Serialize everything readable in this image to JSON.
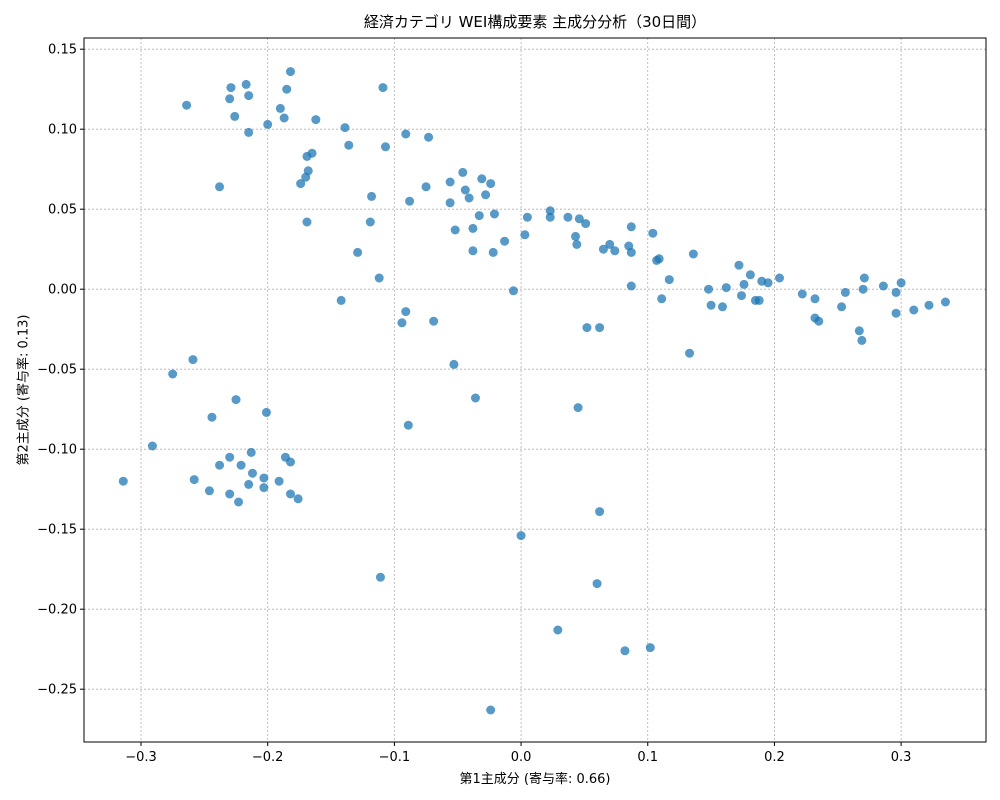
{
  "chart_data": {
    "type": "scatter",
    "title": "経済カテゴリ WEI構成要素 主成分分析（30日間）",
    "xlabel": "第1主成分 (寄与率: 0.66)",
    "ylabel": "第2主成分 (寄与率: 0.13)",
    "xlim": [
      -0.345,
      0.367
    ],
    "ylim": [
      -0.283,
      0.157
    ],
    "xticks": [
      -0.3,
      -0.2,
      -0.1,
      0.0,
      0.1,
      0.2,
      0.3
    ],
    "xtick_labels": [
      "−0.3",
      "−0.2",
      "−0.1",
      "0.0",
      "0.1",
      "0.2",
      "0.3"
    ],
    "yticks": [
      0.15,
      0.1,
      0.05,
      0.0,
      -0.05,
      -0.1,
      -0.15,
      -0.2,
      -0.25
    ],
    "ytick_labels": [
      "0.15",
      "0.10",
      "0.05",
      "0.00",
      "−0.05",
      "−0.10",
      "−0.15",
      "−0.20",
      "−0.25"
    ],
    "grid": true,
    "marker_color": "#1f77b4",
    "points": [
      [
        -0.182,
        0.136
      ],
      [
        -0.217,
        0.128
      ],
      [
        -0.229,
        0.126
      ],
      [
        -0.185,
        0.125
      ],
      [
        -0.109,
        0.126
      ],
      [
        -0.215,
        0.121
      ],
      [
        -0.23,
        0.119
      ],
      [
        -0.264,
        0.115
      ],
      [
        -0.19,
        0.113
      ],
      [
        -0.226,
        0.108
      ],
      [
        -0.187,
        0.107
      ],
      [
        -0.162,
        0.106
      ],
      [
        -0.2,
        0.103
      ],
      [
        -0.139,
        0.101
      ],
      [
        -0.215,
        0.098
      ],
      [
        -0.091,
        0.097
      ],
      [
        -0.073,
        0.095
      ],
      [
        -0.136,
        0.09
      ],
      [
        -0.107,
        0.089
      ],
      [
        -0.165,
        0.085
      ],
      [
        -0.169,
        0.083
      ],
      [
        -0.168,
        0.074
      ],
      [
        -0.046,
        0.073
      ],
      [
        -0.17,
        0.07
      ],
      [
        -0.031,
        0.069
      ],
      [
        -0.174,
        0.066
      ],
      [
        -0.056,
        0.067
      ],
      [
        -0.024,
        0.066
      ],
      [
        -0.075,
        0.064
      ],
      [
        -0.238,
        0.064
      ],
      [
        -0.044,
        0.062
      ],
      [
        -0.028,
        0.059
      ],
      [
        -0.041,
        0.057
      ],
      [
        -0.118,
        0.058
      ],
      [
        -0.088,
        0.055
      ],
      [
        -0.056,
        0.054
      ],
      [
        -0.021,
        0.047
      ],
      [
        -0.033,
        0.046
      ],
      [
        0.023,
        0.049
      ],
      [
        0.005,
        0.045
      ],
      [
        0.023,
        0.045
      ],
      [
        0.037,
        0.045
      ],
      [
        0.046,
        0.044
      ],
      [
        -0.169,
        0.042
      ],
      [
        -0.119,
        0.042
      ],
      [
        0.051,
        0.041
      ],
      [
        -0.052,
        0.037
      ],
      [
        -0.038,
        0.038
      ],
      [
        0.087,
        0.039
      ],
      [
        0.104,
        0.035
      ],
      [
        0.003,
        0.034
      ],
      [
        0.043,
        0.033
      ],
      [
        -0.013,
        0.03
      ],
      [
        0.044,
        0.028
      ],
      [
        0.07,
        0.028
      ],
      [
        0.085,
        0.027
      ],
      [
        0.065,
        0.025
      ],
      [
        0.074,
        0.024
      ],
      [
        -0.129,
        0.023
      ],
      [
        -0.038,
        0.024
      ],
      [
        -0.022,
        0.023
      ],
      [
        0.087,
        0.023
      ],
      [
        0.136,
        0.022
      ],
      [
        0.107,
        0.018
      ],
      [
        0.109,
        0.019
      ],
      [
        0.172,
        0.015
      ],
      [
        0.181,
        0.009
      ],
      [
        0.204,
        0.007
      ],
      [
        0.271,
        0.007
      ],
      [
        0.117,
        0.006
      ],
      [
        -0.112,
        0.007
      ],
      [
        0.19,
        0.005
      ],
      [
        0.195,
        0.004
      ],
      [
        0.3,
        0.004
      ],
      [
        0.176,
        0.003
      ],
      [
        0.286,
        0.002
      ],
      [
        0.087,
        0.002
      ],
      [
        0.162,
        0.001
      ],
      [
        0.148,
        0.0
      ],
      [
        0.27,
        0.0
      ],
      [
        -0.006,
        -0.001
      ],
      [
        0.256,
        -0.002
      ],
      [
        0.296,
        -0.002
      ],
      [
        0.222,
        -0.003
      ],
      [
        0.174,
        -0.004
      ],
      [
        0.111,
        -0.006
      ],
      [
        0.232,
        -0.006
      ],
      [
        0.185,
        -0.007
      ],
      [
        0.188,
        -0.007
      ],
      [
        -0.142,
        -0.007
      ],
      [
        0.15,
        -0.01
      ],
      [
        0.322,
        -0.01
      ],
      [
        0.335,
        -0.008
      ],
      [
        0.159,
        -0.011
      ],
      [
        0.253,
        -0.011
      ],
      [
        0.31,
        -0.013
      ],
      [
        -0.091,
        -0.014
      ],
      [
        0.296,
        -0.015
      ],
      [
        0.232,
        -0.018
      ],
      [
        0.235,
        -0.02
      ],
      [
        -0.069,
        -0.02
      ],
      [
        -0.094,
        -0.021
      ],
      [
        0.052,
        -0.024
      ],
      [
        0.062,
        -0.024
      ],
      [
        0.267,
        -0.026
      ],
      [
        0.269,
        -0.032
      ],
      [
        0.133,
        -0.04
      ],
      [
        -0.259,
        -0.044
      ],
      [
        -0.053,
        -0.047
      ],
      [
        -0.275,
        -0.053
      ],
      [
        -0.225,
        -0.069
      ],
      [
        -0.036,
        -0.068
      ],
      [
        0.045,
        -0.074
      ],
      [
        -0.201,
        -0.077
      ],
      [
        -0.244,
        -0.08
      ],
      [
        -0.089,
        -0.085
      ],
      [
        -0.291,
        -0.098
      ],
      [
        -0.213,
        -0.102
      ],
      [
        -0.23,
        -0.105
      ],
      [
        -0.186,
        -0.105
      ],
      [
        -0.182,
        -0.108
      ],
      [
        -0.238,
        -0.11
      ],
      [
        -0.221,
        -0.11
      ],
      [
        -0.212,
        -0.115
      ],
      [
        -0.203,
        -0.118
      ],
      [
        -0.258,
        -0.119
      ],
      [
        -0.314,
        -0.12
      ],
      [
        -0.191,
        -0.12
      ],
      [
        -0.215,
        -0.122
      ],
      [
        -0.203,
        -0.124
      ],
      [
        -0.246,
        -0.126
      ],
      [
        -0.23,
        -0.128
      ],
      [
        -0.182,
        -0.128
      ],
      [
        -0.176,
        -0.131
      ],
      [
        -0.223,
        -0.133
      ],
      [
        0.062,
        -0.139
      ],
      [
        0.0,
        -0.154
      ],
      [
        -0.111,
        -0.18
      ],
      [
        0.06,
        -0.184
      ],
      [
        0.029,
        -0.213
      ],
      [
        0.102,
        -0.224
      ],
      [
        0.082,
        -0.226
      ],
      [
        -0.024,
        -0.263
      ]
    ]
  }
}
